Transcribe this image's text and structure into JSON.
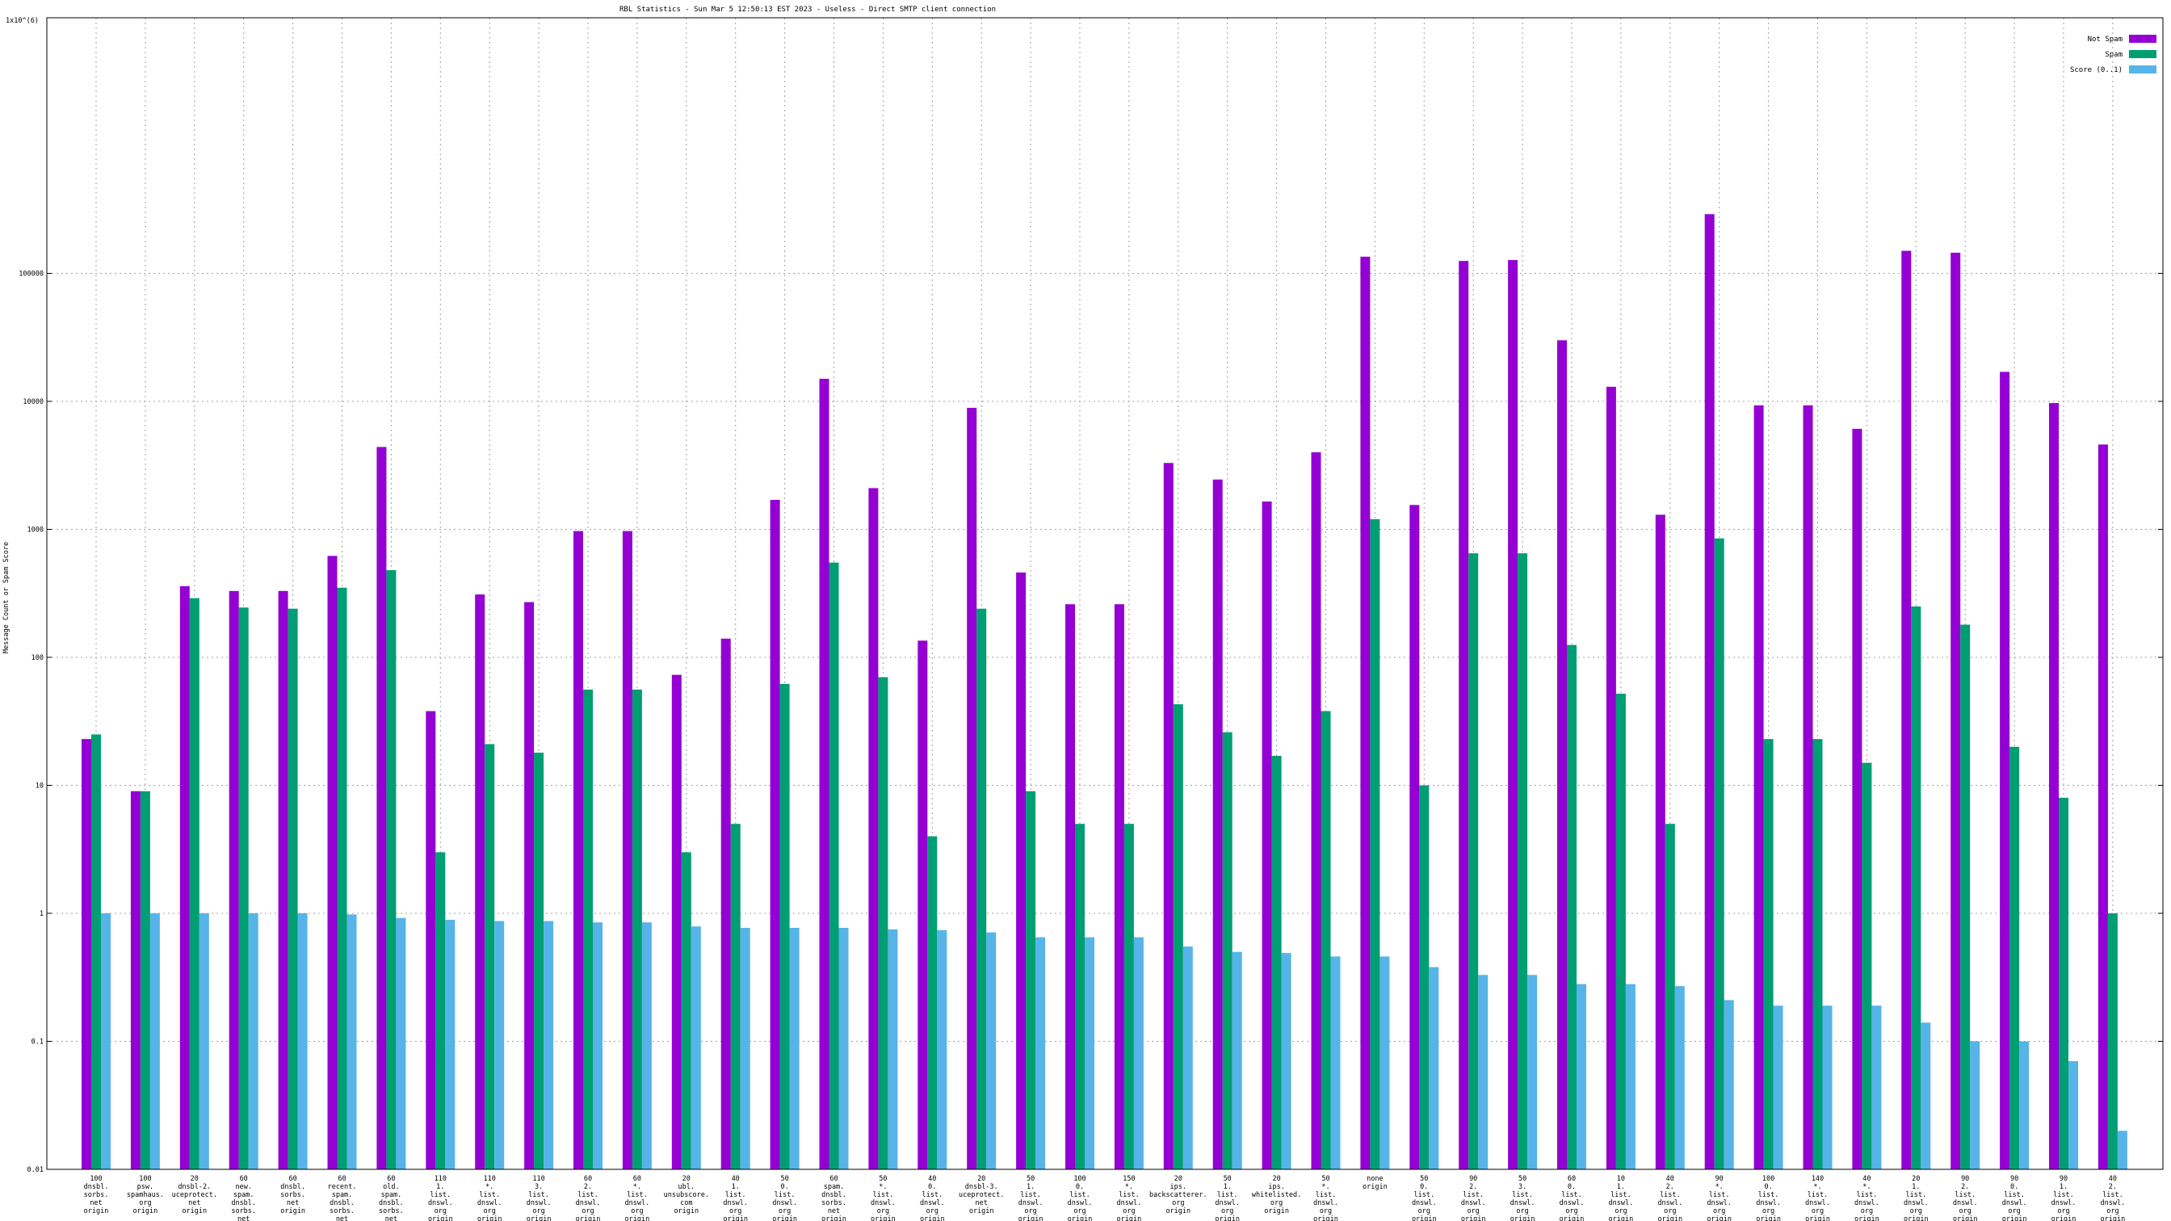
{
  "chart_data": {
    "type": "bar",
    "title": "RBL Statistics - Sun Mar  5 12:50:13 EST 2023 - Useless - Direct SMTP client connection",
    "ylabel": "Message Count or Spam Score",
    "ytop_label": "1x10^(6)",
    "yscale": "log",
    "ylim": [
      0.01,
      1000000
    ],
    "yticks": [
      {
        "value": 0.01,
        "label": "0.01"
      },
      {
        "value": 0.1,
        "label": "0.1"
      },
      {
        "value": 1,
        "label": "1"
      },
      {
        "value": 10,
        "label": "10"
      },
      {
        "value": 100,
        "label": "100"
      },
      {
        "value": 1000,
        "label": "1000"
      },
      {
        "value": 10000,
        "label": "10000"
      },
      {
        "value": 100000,
        "label": "100000"
      }
    ],
    "legend_position": "top-right",
    "categories": [
      [
        "100",
        "dnsbl.",
        "sorbs.",
        "net",
        "origin"
      ],
      [
        "100",
        "psw.",
        "spamhaus.",
        "org",
        "origin"
      ],
      [
        "20",
        "dnsbl-2.",
        "uceprotect.",
        "net",
        "origin"
      ],
      [
        "60",
        "new.",
        "spam.",
        "dnsbl.",
        "sorbs.",
        "net",
        "origin"
      ],
      [
        "60",
        "dnsbl.",
        "sorbs.",
        "net",
        "origin"
      ],
      [
        "60",
        "recent.",
        "spam.",
        "dnsbl.",
        "sorbs.",
        "net",
        "origin"
      ],
      [
        "60",
        "old.",
        "spam.",
        "dnsbl.",
        "sorbs.",
        "net",
        "origin"
      ],
      [
        "110",
        "1.",
        "list.",
        "dnswl.",
        "org",
        "origin"
      ],
      [
        "110",
        "*.",
        "list.",
        "dnswl.",
        "org",
        "origin"
      ],
      [
        "110",
        "3.",
        "list.",
        "dnswl.",
        "org",
        "origin"
      ],
      [
        "60",
        "2.",
        "list.",
        "dnswl.",
        "org",
        "origin"
      ],
      [
        "60",
        "*.",
        "list.",
        "dnswl.",
        "org",
        "origin"
      ],
      [
        "20",
        "ubl.",
        "unsubscore.",
        "com",
        "origin"
      ],
      [
        "40",
        "1.",
        "list.",
        "dnswl.",
        "org",
        "origin"
      ],
      [
        "50",
        "0.",
        "list.",
        "dnswl.",
        "org",
        "origin"
      ],
      [
        "60",
        "spam.",
        "dnsbl.",
        "sorbs.",
        "net",
        "origin"
      ],
      [
        "50",
        "*.",
        "list.",
        "dnswl.",
        "org",
        "origin"
      ],
      [
        "40",
        "0.",
        "list.",
        "dnswl.",
        "org",
        "origin"
      ],
      [
        "20",
        "dnsbl-3.",
        "uceprotect.",
        "net",
        "origin"
      ],
      [
        "50",
        "1.",
        "list.",
        "dnswl.",
        "org",
        "origin"
      ],
      [
        "100",
        "0.",
        "list.",
        "dnswl.",
        "org",
        "origin"
      ],
      [
        "150",
        "*.",
        "list.",
        "dnswl.",
        "org",
        "origin"
      ],
      [
        "20",
        "ips.",
        "backscatterer.",
        "org",
        "origin"
      ],
      [
        "50",
        "1.",
        "list.",
        "dnswl.",
        "org",
        "origin"
      ],
      [
        "20",
        "ips.",
        "whitelisted.",
        "org",
        "origin"
      ],
      [
        "50",
        "*.",
        "list.",
        "dnswl.",
        "org",
        "origin"
      ],
      [
        "none",
        "origin"
      ],
      [
        "50",
        "0.",
        "list.",
        "dnswl.",
        "org",
        "origin"
      ],
      [
        "90",
        "2.",
        "list.",
        "dnswl.",
        "org",
        "origin"
      ],
      [
        "50",
        "3.",
        "list.",
        "dnswl.",
        "org",
        "origin"
      ],
      [
        "60",
        "0.",
        "list.",
        "dnswl.",
        "org",
        "origin"
      ],
      [
        "10",
        "1.",
        "list.",
        "dnswl.",
        "org",
        "origin"
      ],
      [
        "40",
        "2.",
        "list.",
        "dnswl.",
        "org",
        "origin"
      ],
      [
        "90",
        "*.",
        "list.",
        "dnswl.",
        "org",
        "origin"
      ],
      [
        "100",
        "0.",
        "list.",
        "dnswl.",
        "org",
        "origin"
      ],
      [
        "140",
        "*.",
        "list.",
        "dnswl.",
        "org",
        "origin"
      ],
      [
        "40",
        "*.",
        "list.",
        "dnswl.",
        "org",
        "origin"
      ],
      [
        "20",
        "1.",
        "list.",
        "dnswl.",
        "org",
        "origin"
      ],
      [
        "90",
        "2.",
        "list.",
        "dnswl.",
        "org",
        "origin"
      ],
      [
        "90",
        "0.",
        "list.",
        "dnswl.",
        "org",
        "origin"
      ],
      [
        "90",
        "1.",
        "list.",
        "dnswl.",
        "org",
        "origin"
      ],
      [
        "40",
        "2.",
        "list.",
        "dnswl.",
        "org",
        "origin"
      ]
    ],
    "series": [
      {
        "name": "Not Spam",
        "color": "#9400d3",
        "values": [
          23,
          9,
          360,
          330,
          330,
          620,
          4400,
          38,
          310,
          270,
          970,
          970,
          73,
          140,
          1700,
          15000,
          2100,
          135,
          8900,
          460,
          260,
          260,
          3300,
          2450,
          1650,
          4000,
          135000,
          1550,
          125000,
          127000,
          30000,
          13000,
          1300,
          290000,
          9300,
          9300,
          6100,
          150000,
          145000,
          17000,
          9700,
          4600
        ]
      },
      {
        "name": "Spam",
        "color": "#009e73",
        "values": [
          25,
          9,
          290,
          245,
          240,
          350,
          480,
          3,
          21,
          18,
          56,
          56,
          3,
          5,
          62,
          550,
          70,
          4,
          240,
          9,
          5,
          5,
          43,
          26,
          17,
          38,
          1200,
          10,
          650,
          650,
          125,
          52,
          5,
          850,
          23,
          23,
          15,
          250,
          180,
          20,
          8,
          1
        ]
      },
      {
        "name": "Score (0..1)",
        "color": "#56b4e9",
        "values": [
          1,
          1,
          1,
          1,
          1,
          0.98,
          0.92,
          0.89,
          0.87,
          0.87,
          0.85,
          0.85,
          0.79,
          0.77,
          0.77,
          0.77,
          0.75,
          0.74,
          0.71,
          0.65,
          0.65,
          0.65,
          0.55,
          0.5,
          0.49,
          0.46,
          0.46,
          0.38,
          0.33,
          0.33,
          0.28,
          0.28,
          0.27,
          0.21,
          0.19,
          0.19,
          0.19,
          0.14,
          0.1,
          0.1,
          0.07,
          0.02
        ]
      }
    ]
  }
}
